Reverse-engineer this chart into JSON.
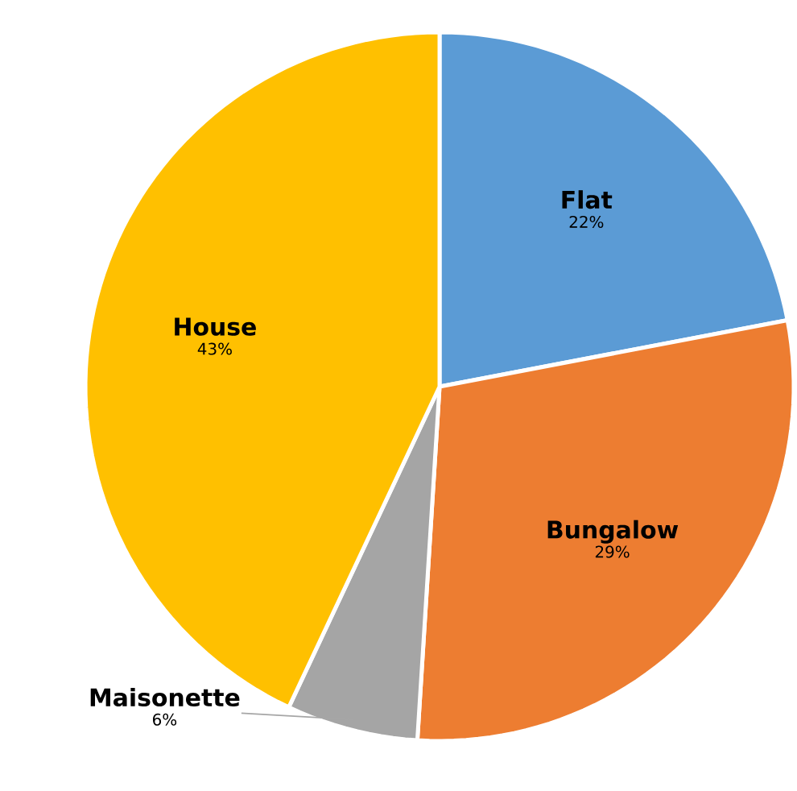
{
  "chart_data": {
    "type": "pie",
    "categories": [
      "Flat",
      "Bungalow",
      "Maisonette",
      "House"
    ],
    "values": [
      22,
      29,
      6,
      43
    ],
    "colors": [
      "#5b9bd5",
      "#ed7d31",
      "#a5a5a5",
      "#ffc000"
    ],
    "value_labels": [
      "22%",
      "29%",
      "6%",
      "43%"
    ]
  }
}
